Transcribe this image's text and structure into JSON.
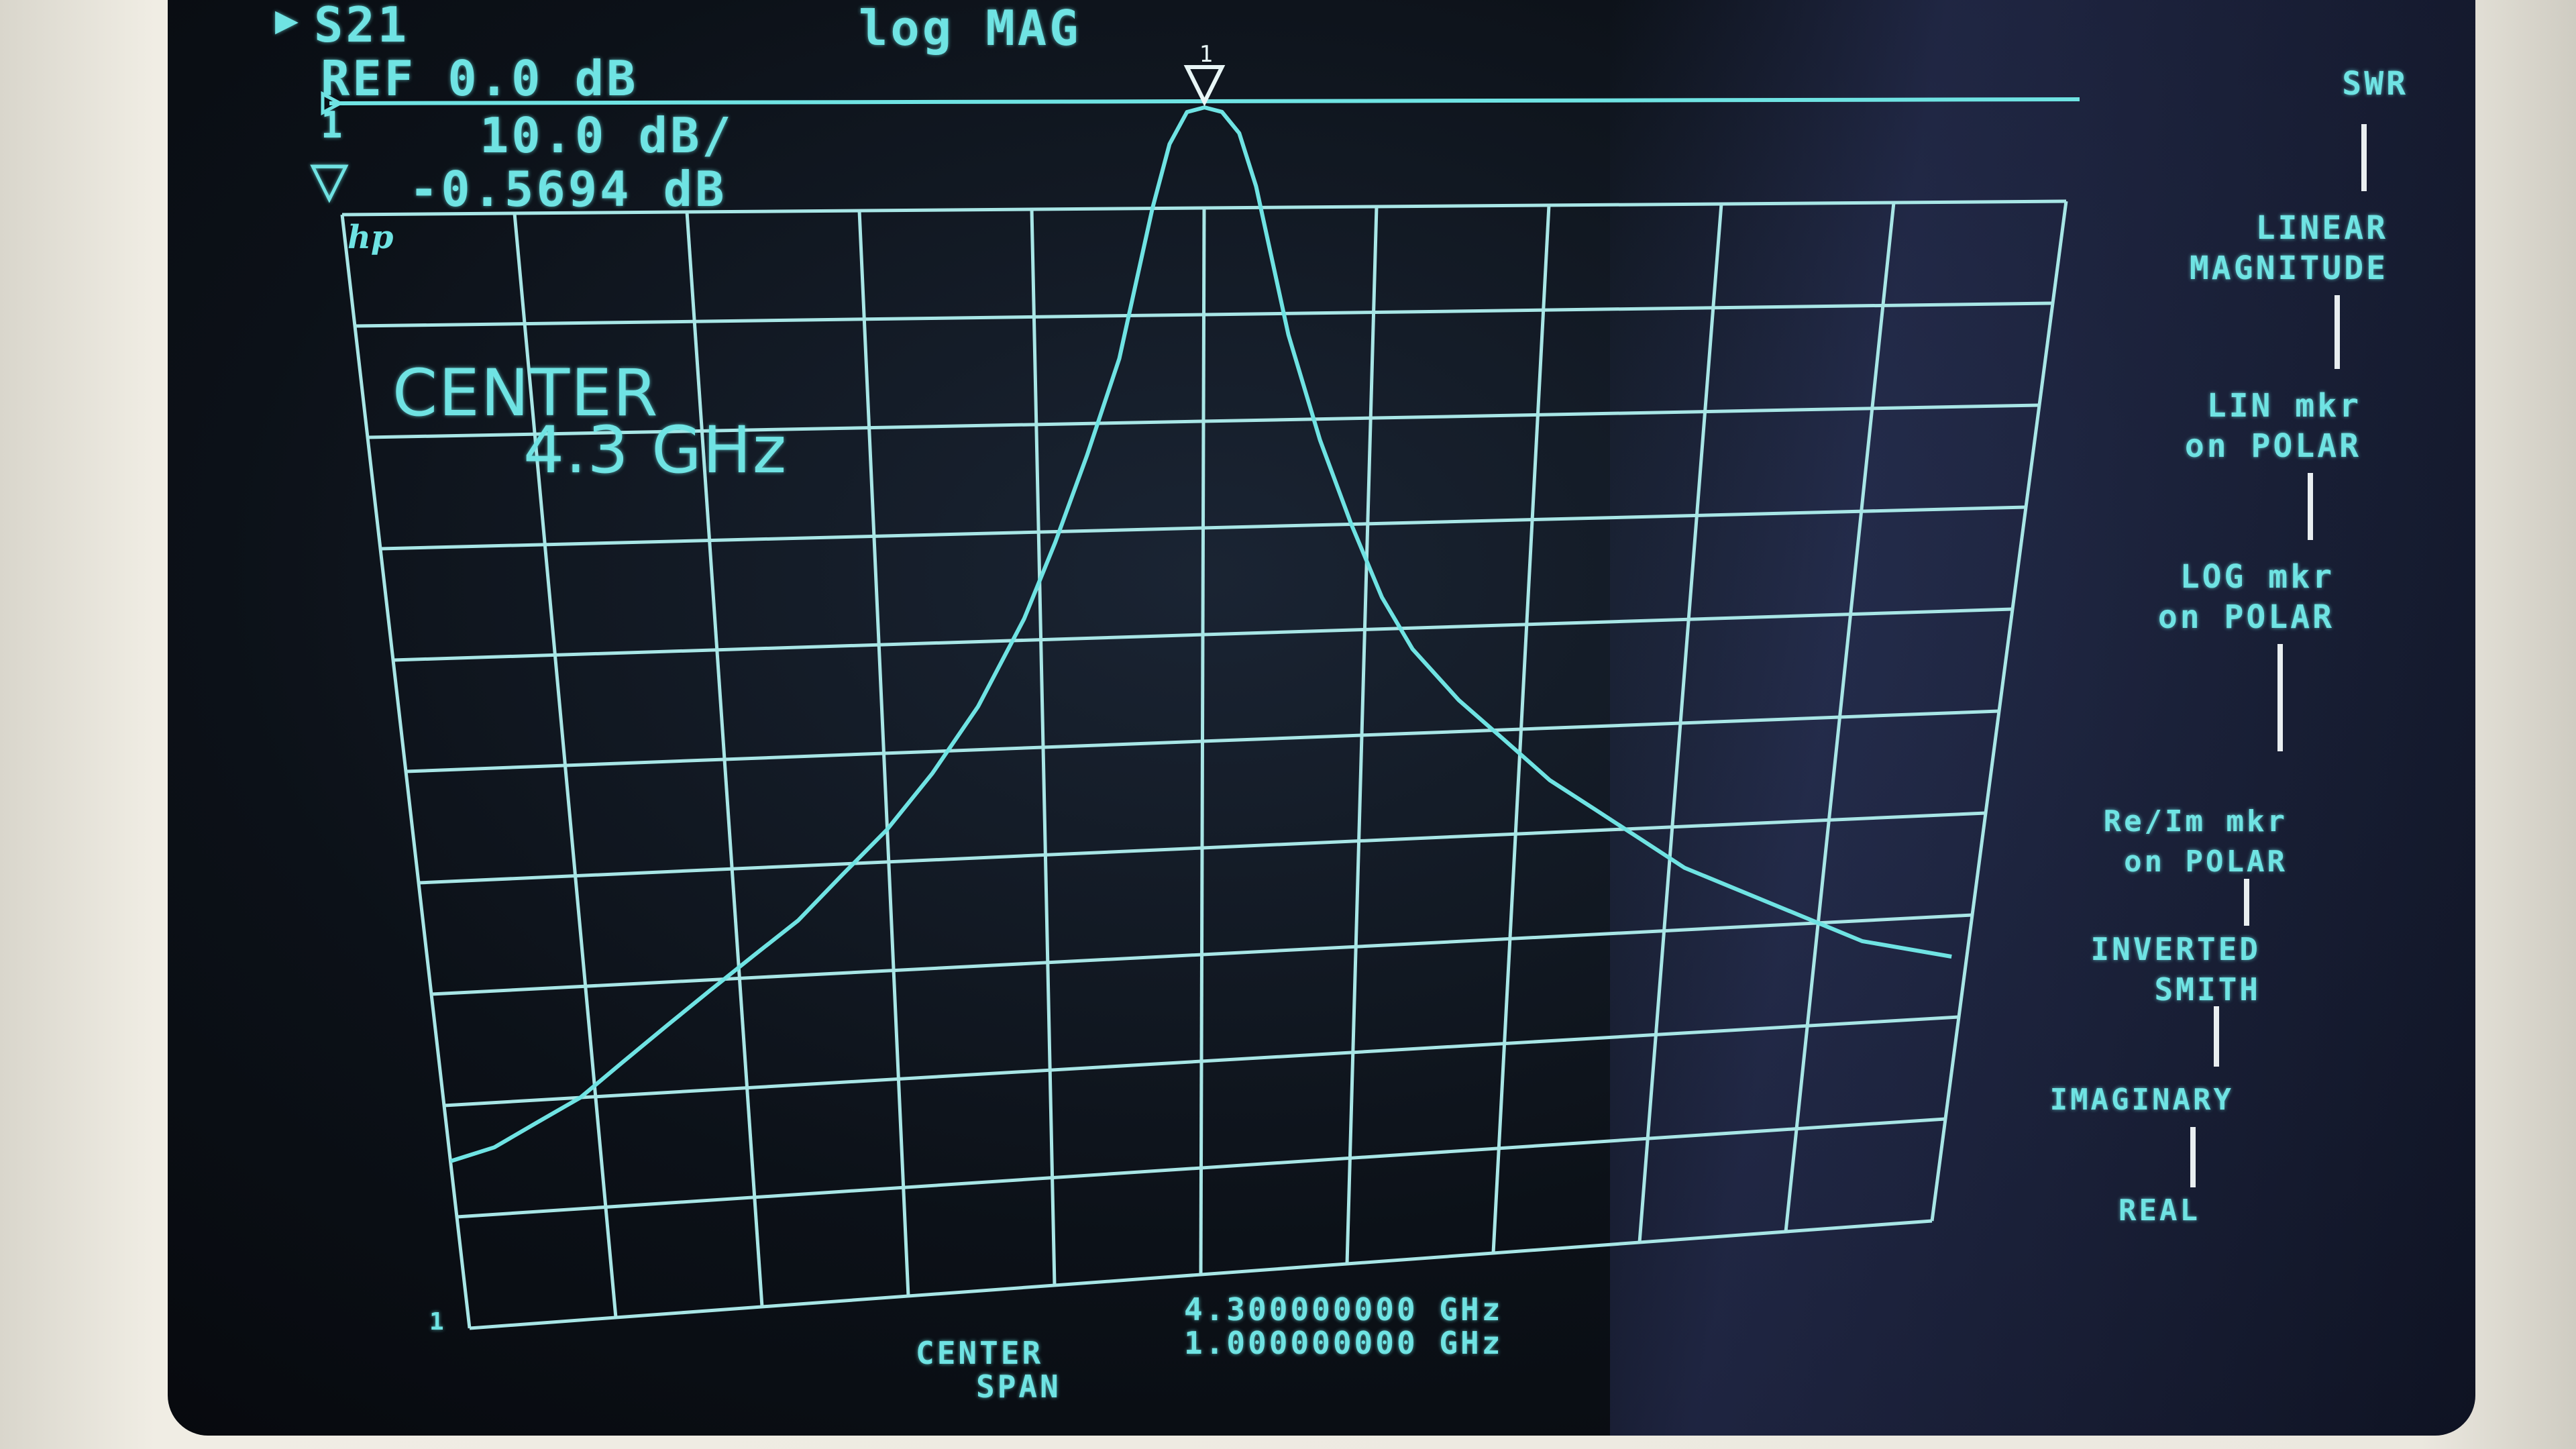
{
  "header": {
    "param_label": "S21",
    "format_label": "log MAG",
    "ref_label": "REF 0.0 dB",
    "channel_number": "1",
    "scale_label": "10.0 dB/",
    "marker_value": "-0.5694 dB",
    "logo": "hp"
  },
  "overlay": {
    "center_title": "CENTER",
    "center_value": "4.3 GHz"
  },
  "footer": {
    "center_label": "CENTER",
    "center_value": "4.300000000 GHz",
    "span_label": "SPAN",
    "span_value": "1.000000000 GHz"
  },
  "softkeys": [
    {
      "line1": "SWR",
      "line2": ""
    },
    {
      "line1": "LINEAR",
      "line2": "MAGNITUDE"
    },
    {
      "line1": "LIN mkr",
      "line2": "on POLAR"
    },
    {
      "line1": "LOG mkr",
      "line2": "on POLAR"
    },
    {
      "line1": "Re/Im mkr",
      "line2": "on POLAR"
    },
    {
      "line1": "INVERTED",
      "line2": "SMITH"
    },
    {
      "line1": "IMAGINARY",
      "line2": ""
    },
    {
      "line1": "REAL",
      "line2": ""
    }
  ],
  "marker": {
    "number": "1",
    "start_mark": "1"
  },
  "colors": {
    "trace": "#6fe3e3",
    "grid": "#a8e6e6",
    "background": "#0c1118"
  },
  "chart_data": {
    "type": "line",
    "xlabel": "",
    "ylabel": "",
    "xlim": [
      3.8,
      4.8
    ],
    "ylim": [
      -100,
      0
    ],
    "grid": true,
    "x_divisions": 10,
    "y_divisions": 10,
    "ref_level_db": 0.0,
    "scale_db_per_div": 10.0,
    "marker_x": 4.3,
    "marker_y": -0.5694,
    "series": [
      {
        "x": [
          3.8,
          3.83,
          3.86,
          3.89,
          3.92,
          3.95,
          3.98,
          4.01,
          4.04,
          4.07,
          4.1,
          4.13,
          4.16,
          4.19,
          4.21,
          4.23,
          4.25,
          4.27,
          4.28,
          4.29,
          4.3,
          4.31,
          4.32,
          4.33,
          4.35,
          4.37,
          4.39,
          4.41,
          4.43,
          4.46,
          4.49,
          4.52,
          4.55,
          4.58,
          4.61,
          4.64,
          4.67,
          4.7,
          4.73,
          4.76,
          4.79
        ],
        "y": [
          -95,
          -94,
          -92,
          -90,
          -87,
          -84,
          -81,
          -78,
          -75,
          -71,
          -67,
          -62,
          -56,
          -48,
          -41,
          -33,
          -24,
          -10,
          -4,
          -1,
          -0.57,
          -1,
          -3,
          -8,
          -22,
          -32,
          -40,
          -47,
          -52,
          -57,
          -61,
          -65,
          -68,
          -71,
          -74,
          -76,
          -78,
          -80,
          -82,
          -83,
          -84
        ]
      }
    ]
  }
}
